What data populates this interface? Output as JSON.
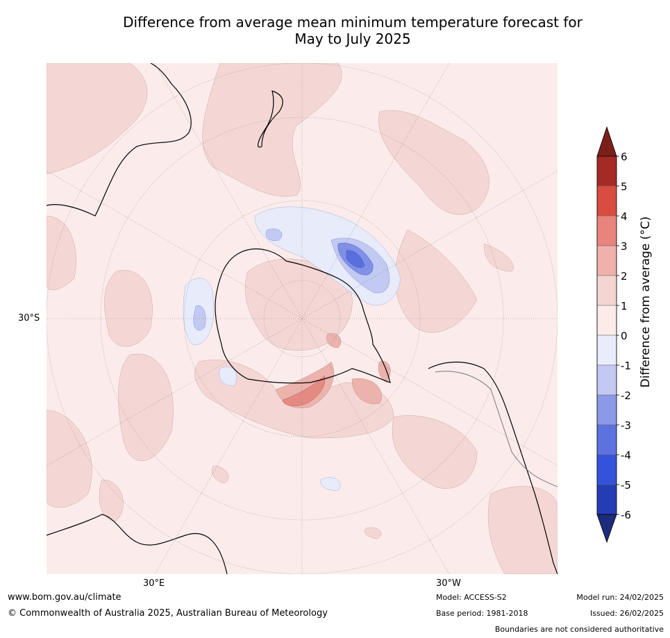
{
  "title": {
    "line1": "Difference from average mean minimum temperature forecast for",
    "line2": "May to July 2025"
  },
  "map": {
    "projection": "south-polar-stereographic",
    "lat_label": "30°S",
    "lon_labels": [
      "30°E",
      "30°W"
    ],
    "colors": {
      "ocean_bg": "#fbeceb",
      "light_warm": "#f4d7d4",
      "warm_1": "#ecb3ad",
      "warm_2": "#e48a82",
      "cool_1": "#e7ebfa",
      "cool_2": "#c2c9f2",
      "cool_3": "#7f90e6",
      "cool_4": "#5a6fde",
      "coast": "#000000",
      "border": "#777777",
      "grid": "#888888"
    }
  },
  "colorbar": {
    "label": "Difference from average (°C)",
    "ticks": [
      "6",
      "5",
      "4",
      "3",
      "2",
      "1",
      "0",
      "-1",
      "-2",
      "-3",
      "-4",
      "-5",
      "-6"
    ],
    "colors": [
      "#a52a24",
      "#d94c40",
      "#e8847c",
      "#efb1aa",
      "#f5d5d1",
      "#fcebe9",
      "#e9ecfb",
      "#c3c9f3",
      "#8a9ae8",
      "#5d72e0",
      "#3552dc",
      "#243db5"
    ],
    "extend_max": "#7c1e1a",
    "extend_min": "#1d2c7a"
  },
  "footer": {
    "url": "www.bom.gov.au/climate",
    "copyright": "© Commonwealth of Australia 2025, Australian Bureau of Meteorology",
    "model": "Model: ACCESS-S2",
    "base_period": "Base period: 1981-2018",
    "model_run": "Model run: 24/02/2025",
    "issued": "Issued: 26/02/2025",
    "disclaimer": "Boundaries are not considered authoritative"
  }
}
